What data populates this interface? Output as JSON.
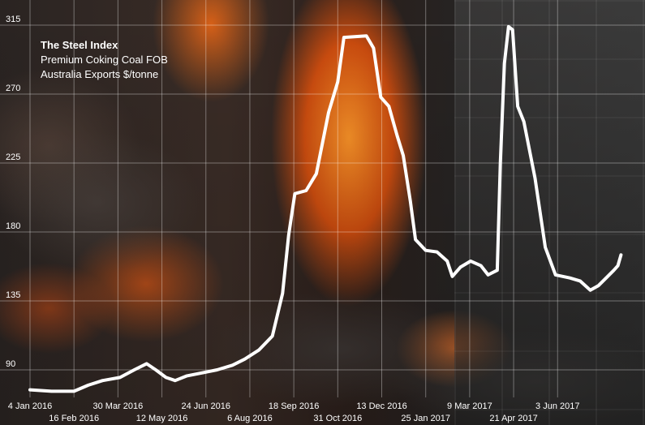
{
  "chart_data": {
    "type": "line",
    "title": "The Steel Index",
    "subtitle_lines": [
      "Premium Coking Coal FOB",
      "Australia Exports $/tonne"
    ],
    "xlabel": "",
    "ylabel": "",
    "ylim": [
      72,
      324
    ],
    "yticks": [
      90,
      135,
      180,
      225,
      270,
      315
    ],
    "grid": true,
    "x_start": "4 Jan 2016",
    "x_end": "14 Aug 2017",
    "xticks": [
      {
        "date": "2016-01-04",
        "label": "4 Jan 2016"
      },
      {
        "date": "2016-02-16",
        "label": "16 Feb 2016"
      },
      {
        "date": "2016-03-30",
        "label": "30 Mar 2016"
      },
      {
        "date": "2016-05-12",
        "label": "12 May 2016"
      },
      {
        "date": "2016-06-24",
        "label": "24 Jun 2016"
      },
      {
        "date": "2016-08-06",
        "label": "6 Aug 2016"
      },
      {
        "date": "2016-09-18",
        "label": "18 Sep 2016"
      },
      {
        "date": "2016-10-31",
        "label": "31 Oct 2016"
      },
      {
        "date": "2016-12-13",
        "label": "13 Dec 2016"
      },
      {
        "date": "2017-01-25",
        "label": "25 Jan 2017"
      },
      {
        "date": "2017-03-09",
        "label": "9 Mar 2017"
      },
      {
        "date": "2017-04-21",
        "label": "21 Apr 2017"
      },
      {
        "date": "2017-06-03",
        "label": "3 Jun 2017"
      }
    ],
    "series": [
      {
        "color": "#ffffff",
        "points": [
          [
            "2016-01-04",
            77
          ],
          [
            "2016-01-25",
            76
          ],
          [
            "2016-02-16",
            76
          ],
          [
            "2016-03-01",
            80
          ],
          [
            "2016-03-15",
            83
          ],
          [
            "2016-04-01",
            85
          ],
          [
            "2016-04-15",
            90
          ],
          [
            "2016-04-27",
            94
          ],
          [
            "2016-05-06",
            90
          ],
          [
            "2016-05-16",
            85
          ],
          [
            "2016-05-25",
            83
          ],
          [
            "2016-06-05",
            86
          ],
          [
            "2016-06-20",
            88
          ],
          [
            "2016-07-05",
            90
          ],
          [
            "2016-07-20",
            93
          ],
          [
            "2016-08-01",
            97
          ],
          [
            "2016-08-15",
            103
          ],
          [
            "2016-08-28",
            112
          ],
          [
            "2016-09-07",
            140
          ],
          [
            "2016-09-13",
            178
          ],
          [
            "2016-09-19",
            205
          ],
          [
            "2016-09-30",
            207
          ],
          [
            "2016-10-10",
            218
          ],
          [
            "2016-10-22",
            258
          ],
          [
            "2016-10-31",
            278
          ],
          [
            "2016-11-06",
            307
          ],
          [
            "2016-11-28",
            308
          ],
          [
            "2016-12-05",
            300
          ],
          [
            "2016-12-12",
            268
          ],
          [
            "2016-12-20",
            262
          ],
          [
            "2016-12-28",
            243
          ],
          [
            "2017-01-03",
            230
          ],
          [
            "2017-01-10",
            200
          ],
          [
            "2017-01-15",
            175
          ],
          [
            "2017-01-25",
            168
          ],
          [
            "2017-02-05",
            167
          ],
          [
            "2017-02-15",
            161
          ],
          [
            "2017-02-20",
            151
          ],
          [
            "2017-02-28",
            157
          ],
          [
            "2017-03-10",
            161
          ],
          [
            "2017-03-20",
            158
          ],
          [
            "2017-03-27",
            152
          ],
          [
            "2017-04-05",
            155
          ],
          [
            "2017-04-08",
            225
          ],
          [
            "2017-04-12",
            290
          ],
          [
            "2017-04-16",
            314
          ],
          [
            "2017-04-20",
            312
          ],
          [
            "2017-04-25",
            262
          ],
          [
            "2017-05-01",
            252
          ],
          [
            "2017-05-12",
            215
          ],
          [
            "2017-05-22",
            170
          ],
          [
            "2017-06-01",
            152
          ],
          [
            "2017-06-15",
            150
          ],
          [
            "2017-06-25",
            148
          ],
          [
            "2017-07-05",
            142
          ],
          [
            "2017-07-13",
            145
          ],
          [
            "2017-07-22",
            151
          ],
          [
            "2017-07-28",
            155
          ],
          [
            "2017-08-01",
            158
          ],
          [
            "2017-08-04",
            165
          ]
        ]
      }
    ]
  }
}
